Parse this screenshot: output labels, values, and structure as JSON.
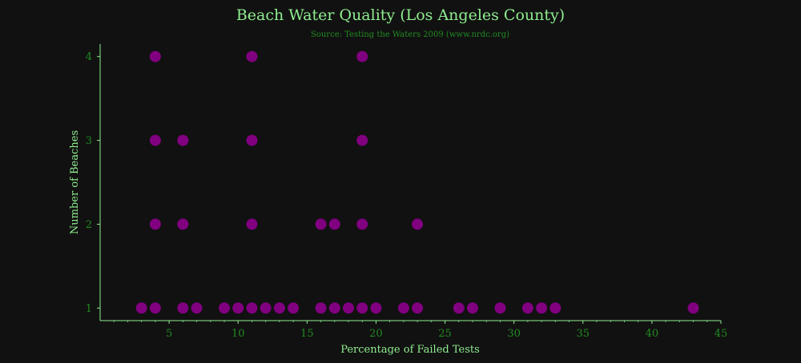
{
  "chart_data": {
    "type": "scatter",
    "title": "Beach Water Quality (Los Angeles County)",
    "subtitle": "Source: Testing the Waters 2009 (www.nrdc.org)",
    "xlabel": "Percentage of Failed Tests",
    "ylabel": "Number of Beaches",
    "xlim": [
      0,
      45
    ],
    "ylim": [
      0.85,
      4.15
    ],
    "xticks": [
      5,
      10,
      15,
      20,
      25,
      30,
      35,
      40,
      45
    ],
    "yticks": [
      1,
      2,
      3,
      4
    ],
    "grid": false,
    "points": [
      {
        "x": 3,
        "y": 1
      },
      {
        "x": 4,
        "y": 1
      },
      {
        "x": 6,
        "y": 1
      },
      {
        "x": 7,
        "y": 1
      },
      {
        "x": 9,
        "y": 1
      },
      {
        "x": 10,
        "y": 1
      },
      {
        "x": 11,
        "y": 1
      },
      {
        "x": 12,
        "y": 1
      },
      {
        "x": 13,
        "y": 1
      },
      {
        "x": 14,
        "y": 1
      },
      {
        "x": 16,
        "y": 1
      },
      {
        "x": 17,
        "y": 1
      },
      {
        "x": 18,
        "y": 1
      },
      {
        "x": 19,
        "y": 1
      },
      {
        "x": 20,
        "y": 1
      },
      {
        "x": 22,
        "y": 1
      },
      {
        "x": 23,
        "y": 1
      },
      {
        "x": 26,
        "y": 1
      },
      {
        "x": 27,
        "y": 1
      },
      {
        "x": 29,
        "y": 1
      },
      {
        "x": 31,
        "y": 1
      },
      {
        "x": 32,
        "y": 1
      },
      {
        "x": 33,
        "y": 1
      },
      {
        "x": 43,
        "y": 1
      },
      {
        "x": 4,
        "y": 2
      },
      {
        "x": 6,
        "y": 2
      },
      {
        "x": 11,
        "y": 2
      },
      {
        "x": 16,
        "y": 2
      },
      {
        "x": 17,
        "y": 2
      },
      {
        "x": 19,
        "y": 2
      },
      {
        "x": 23,
        "y": 2
      },
      {
        "x": 4,
        "y": 3
      },
      {
        "x": 6,
        "y": 3
      },
      {
        "x": 11,
        "y": 3
      },
      {
        "x": 19,
        "y": 3
      },
      {
        "x": 4,
        "y": 4
      },
      {
        "x": 11,
        "y": 4
      },
      {
        "x": 19,
        "y": 4
      }
    ],
    "colors": {
      "background": "#111111",
      "title": "#90ee90",
      "subtitle": "#228b22",
      "axis": "#90ee90",
      "tick_label": "#228b22",
      "marker": "#800080"
    }
  }
}
